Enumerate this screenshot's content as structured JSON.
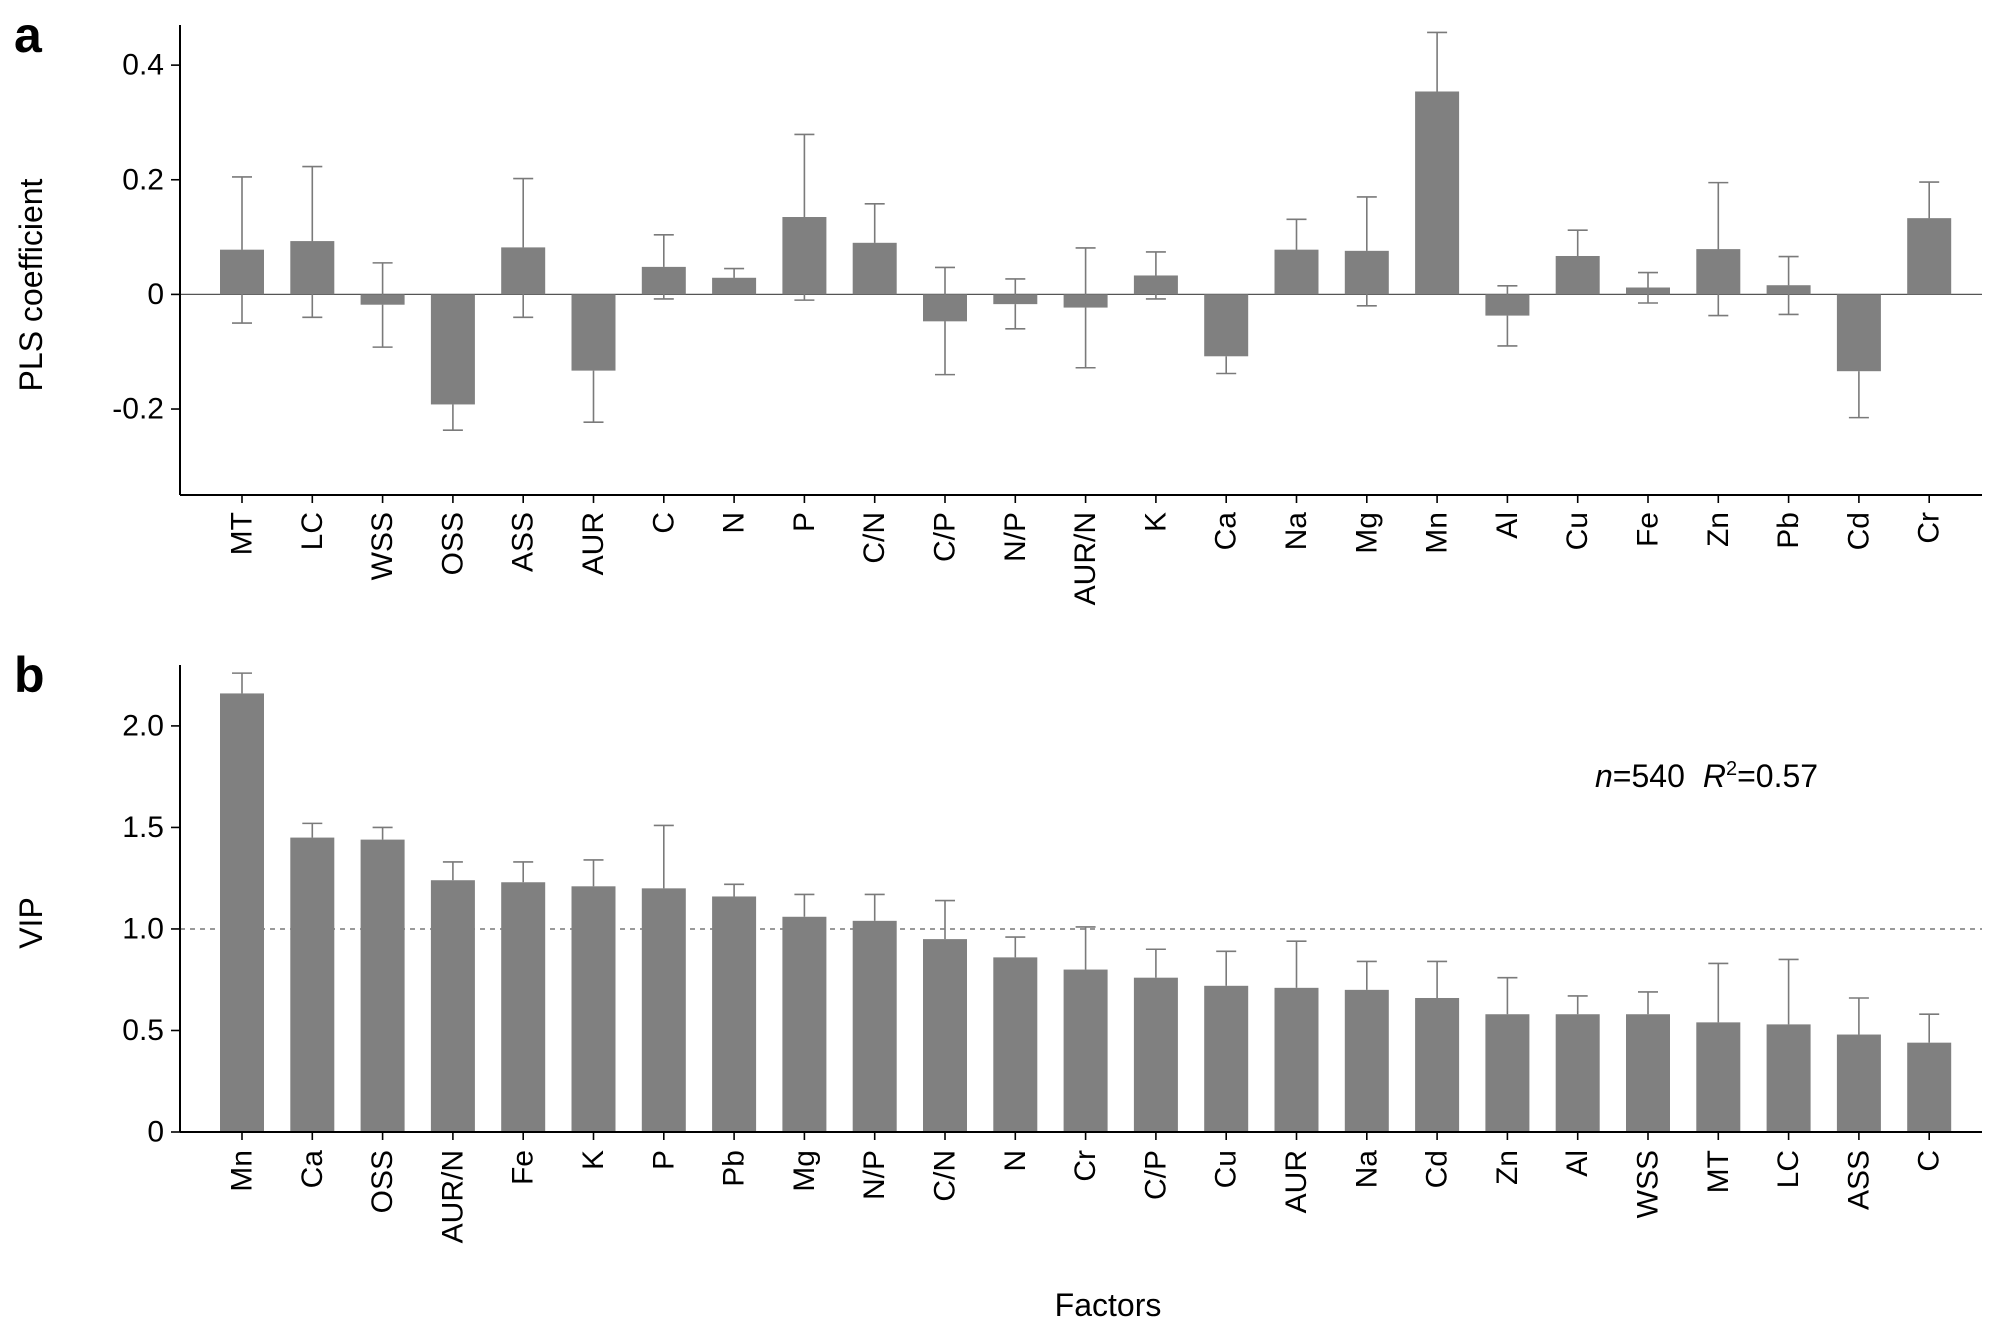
{
  "figure": {
    "xlabel": "Factors"
  },
  "colors": {
    "bar": "#808080",
    "error_bar": "#7a7a7a",
    "axis": "#000000",
    "reference_line": "#999999"
  },
  "chart_data": [
    {
      "panel_label": "a",
      "type": "bar",
      "ylabel": "PLS coefficient",
      "ylim": [
        -0.35,
        0.47
      ],
      "yticks": [
        {
          "value": -0.2,
          "label": "-0.2"
        },
        {
          "value": 0,
          "label": "0"
        },
        {
          "value": 0.2,
          "label": "0.2"
        },
        {
          "value": 0.4,
          "label": "0.4"
        }
      ],
      "zero_line": true,
      "categories": [
        "MT",
        "LC",
        "WSS",
        "OSS",
        "ASS",
        "AUR",
        "C",
        "N",
        "P",
        "C/N",
        "C/P",
        "N/P",
        "AUR/N",
        "K",
        "Ca",
        "Na",
        "Mg",
        "Mn",
        "Al",
        "Cu",
        "Fe",
        "Zn",
        "Pb",
        "Cd",
        "Cr"
      ],
      "values": [
        0.078,
        0.093,
        -0.018,
        -0.192,
        0.082,
        -0.133,
        0.048,
        0.029,
        0.135,
        0.09,
        -0.047,
        -0.017,
        -0.023,
        0.033,
        -0.108,
        0.078,
        0.076,
        0.354,
        -0.037,
        0.067,
        0.012,
        0.079,
        0.016,
        -0.134,
        0.133
      ],
      "err_low": [
        -0.05,
        -0.04,
        -0.092,
        -0.237,
        -0.04,
        -0.223,
        -0.008,
        0.015,
        -0.01,
        0.02,
        -0.14,
        -0.06,
        -0.128,
        -0.008,
        -0.138,
        0.025,
        -0.02,
        0.25,
        -0.09,
        0.022,
        -0.015,
        -0.037,
        -0.035,
        -0.215,
        0.07
      ],
      "err_high": [
        0.205,
        0.223,
        0.055,
        -0.192,
        0.202,
        -0.133,
        0.104,
        0.045,
        0.279,
        0.158,
        0.047,
        0.027,
        0.081,
        0.074,
        -0.108,
        0.131,
        0.17,
        0.457,
        0.015,
        0.112,
        0.038,
        0.195,
        0.066,
        -0.134,
        0.196
      ]
    },
    {
      "panel_label": "b",
      "type": "bar",
      "ylabel": "VIP",
      "ylim": [
        0,
        2.3
      ],
      "yticks": [
        {
          "value": 0,
          "label": "0"
        },
        {
          "value": 0.5,
          "label": "0.5"
        },
        {
          "value": 1.0,
          "label": "1.0"
        },
        {
          "value": 1.5,
          "label": "1.5"
        },
        {
          "value": 2.0,
          "label": "2.0"
        }
      ],
      "reference_line": 1.0,
      "annotation": {
        "n_label": "n",
        "n_value": "=540",
        "r_label": "R",
        "r_sup": "2",
        "r_value": "=0.57"
      },
      "categories": [
        "Mn",
        "Ca",
        "OSS",
        "AUR/N",
        "Fe",
        "K",
        "P",
        "Pb",
        "Mg",
        "N/P",
        "C/N",
        "N",
        "Cr",
        "C/P",
        "Cu",
        "AUR",
        "Na",
        "Cd",
        "Zn",
        "Al",
        "WSS",
        "MT",
        "LC",
        "ASS",
        "C"
      ],
      "values": [
        2.16,
        1.45,
        1.44,
        1.24,
        1.23,
        1.21,
        1.2,
        1.16,
        1.06,
        1.04,
        0.95,
        0.86,
        0.8,
        0.76,
        0.72,
        0.71,
        0.7,
        0.66,
        0.58,
        0.58,
        0.58,
        0.54,
        0.53,
        0.48,
        0.44
      ],
      "err_high": [
        2.26,
        1.52,
        1.5,
        1.33,
        1.33,
        1.34,
        1.51,
        1.22,
        1.17,
        1.17,
        1.14,
        0.96,
        1.01,
        0.9,
        0.89,
        0.94,
        0.84,
        0.84,
        0.76,
        0.67,
        0.69,
        0.83,
        0.85,
        0.66,
        0.58
      ]
    }
  ]
}
